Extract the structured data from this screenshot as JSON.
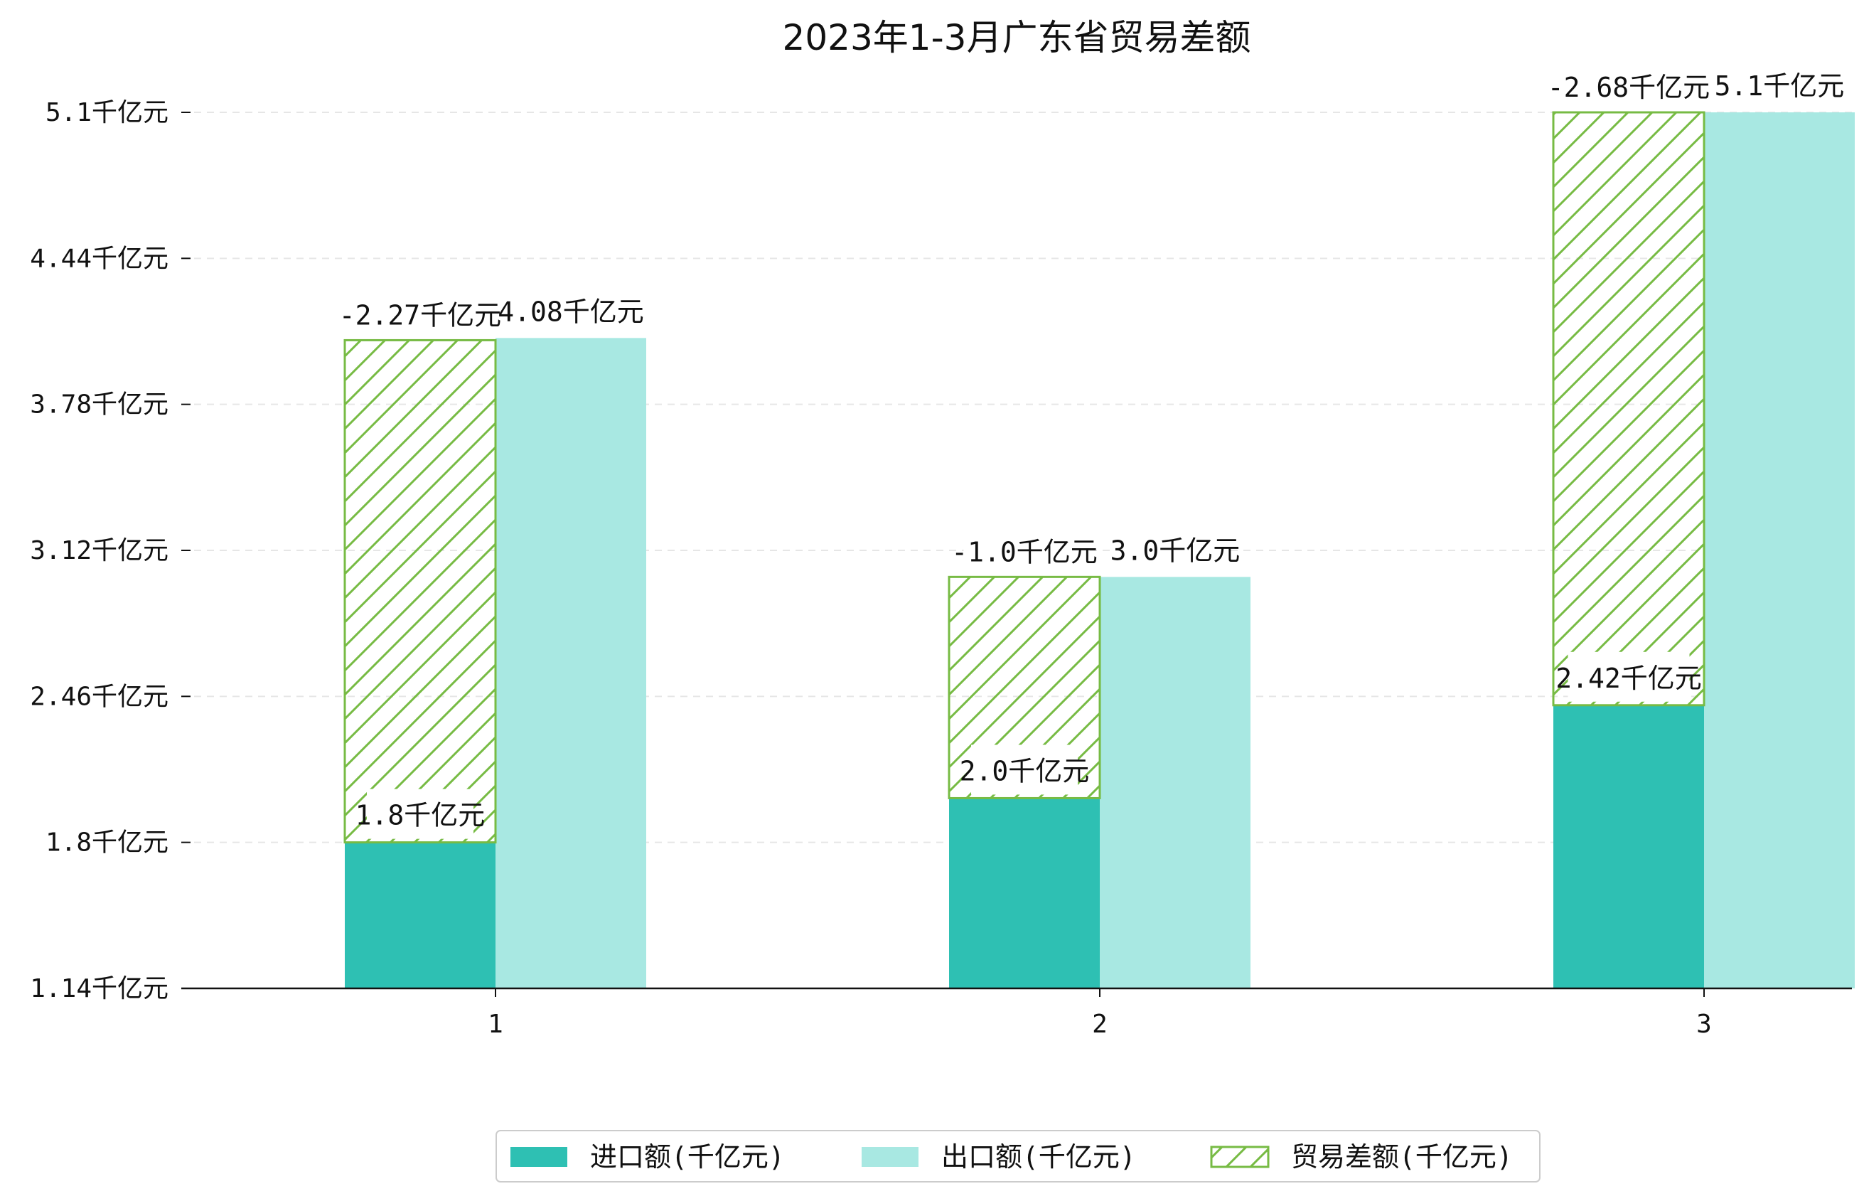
{
  "chart_data": {
    "type": "bar",
    "title": "2023年1-3月广东省贸易差额",
    "xlabel": "",
    "ylabel": "",
    "categories": [
      "1",
      "2",
      "3"
    ],
    "y_ticks": [
      "1.14千亿元",
      "1.8千亿元",
      "2.46千亿元",
      "3.12千亿元",
      "3.78千亿元",
      "4.44千亿元",
      "5.1千亿元"
    ],
    "ylim": [
      1.14,
      5.1
    ],
    "grid": true,
    "legend_position": "bottom-center",
    "series": [
      {
        "name": "进口额(千亿元)",
        "values": [
          1.8,
          2.0,
          2.42
        ],
        "labels": [
          "1.8千亿元",
          "2.0千亿元",
          "2.42千亿元"
        ],
        "color": "#2EC0B3"
      },
      {
        "name": "出口额(千亿元)",
        "values": [
          4.08,
          3.0,
          5.1
        ],
        "labels": [
          "4.08千亿元",
          "3.0千亿元",
          "5.1千亿元"
        ],
        "color": "#A8E8E2"
      },
      {
        "name": "贸易差额(千亿元)",
        "values": [
          -2.27,
          -1.0,
          -2.68
        ],
        "labels": [
          "-2.27千亿元",
          "-1.0千亿元",
          "-2.68千亿元"
        ],
        "color": "#77BB44",
        "pattern": "hatch",
        "stacked_on": "进口额(千亿元)"
      }
    ]
  }
}
